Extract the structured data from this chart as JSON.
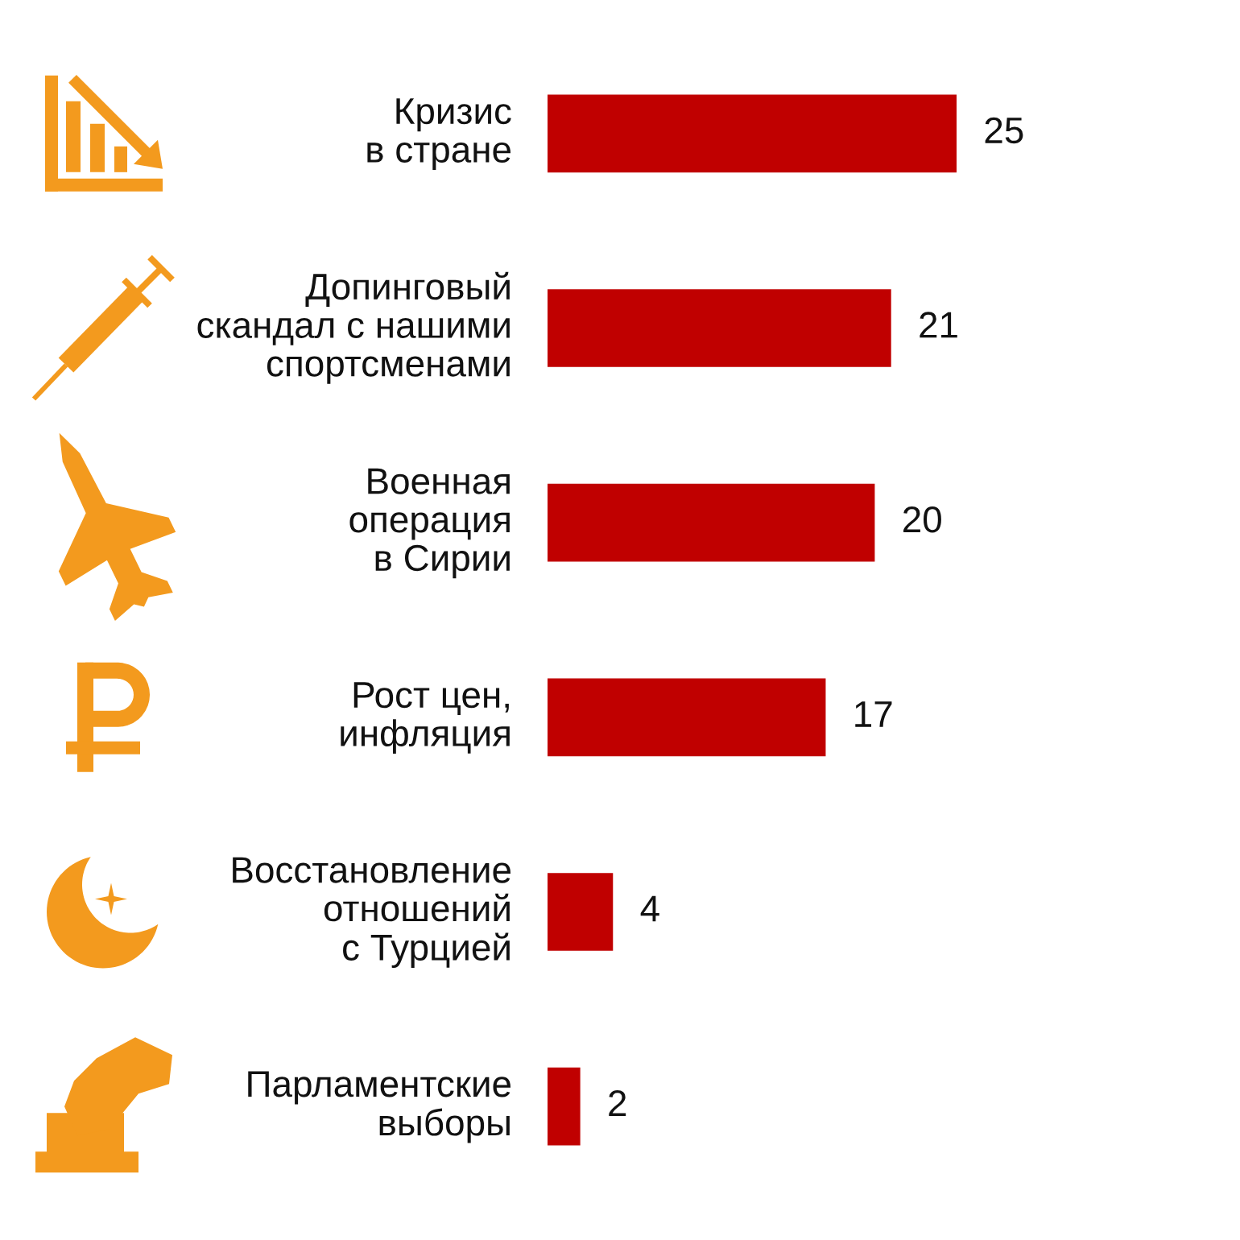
{
  "chart_data": {
    "type": "bar",
    "orientation": "horizontal",
    "categories": [
      "Кризис\nв стране",
      "Допинговый\nскандал с нашими\nспортсменами",
      "Военная\nоперация\nв Сирии",
      "Рост цен,\nинфляция",
      "Восстановление\nотношений\nс Турцией",
      "Парламентские\nвыборы"
    ],
    "values": [
      25,
      21,
      20,
      17,
      4,
      2
    ],
    "color": "#c00000",
    "data_labels": true
  }
}
